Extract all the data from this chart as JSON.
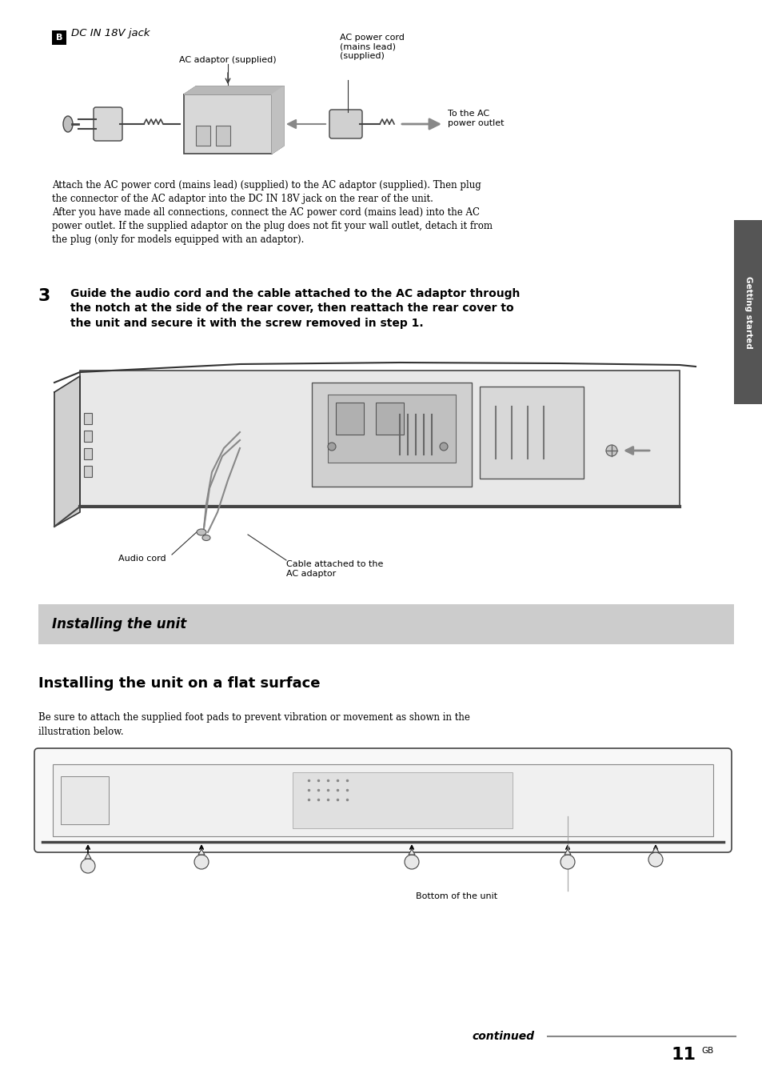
{
  "bg_color": "#ffffff",
  "b_label_text": "DC IN 18V jack",
  "ac_adaptor_label": "AC adaptor (supplied)",
  "ac_power_label": "AC power cord\n(mains lead)\n(supplied)",
  "to_ac_label": "To the AC\npower outlet",
  "attach_text": "Attach the AC power cord (mains lead) (supplied) to the AC adaptor (supplied). Then plug\nthe connector of the AC adaptor into the DC IN 18V jack on the rear of the unit.\nAfter you have made all connections, connect the AC power cord (mains lead) into the AC\npower outlet. If the supplied adaptor on the plug does not fit your wall outlet, detach it from\nthe plug (only for models equipped with an adaptor).",
  "step3_label": "3",
  "step3_text": "Guide the audio cord and the cable attached to the AC adaptor through\nthe notch at the side of the rear cover, then reattach the rear cover to\nthe unit and secure it with the screw removed in step 1.",
  "audio_cord_label": "Audio cord",
  "cable_label": "Cable attached to the\nAC adaptor",
  "section_header_text": "Installing the unit",
  "section_header_bg": "#cccccc",
  "subsection_title": "Installing the unit on a flat surface",
  "body_text_flat": "Be sure to attach the supplied foot pads to prevent vibration or movement as shown in the\nillustration below.",
  "bottom_unit_label": "Bottom of the unit",
  "continued_text": "continued",
  "page_num": "11",
  "page_suffix": "GB",
  "sidebar_text": "Getting started",
  "sidebar_color": "#555555"
}
